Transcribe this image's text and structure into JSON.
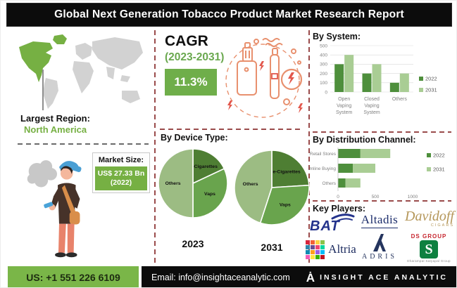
{
  "title": "Global Next Generation Tobacco Product Market Research Report",
  "left_panel": {
    "largest_region_label": "Largest Region:",
    "largest_region_value": "North America",
    "market_size_label": "Market Size:",
    "market_size_value": "US$ 27.33 Bn",
    "market_size_year": "(2022)"
  },
  "cagr_panel": {
    "label": "CAGR",
    "period": "(2023-2031)",
    "value": "11.3%"
  },
  "key_players_panel": {
    "heading": "Key Players:",
    "players": [
      {
        "name": "BAT"
      },
      {
        "name": "Altadis"
      },
      {
        "name": "Davidoff",
        "sub": "CIGARS"
      },
      {
        "name": "Altria"
      },
      {
        "name": "ADRIS"
      },
      {
        "name": "DS GROUP",
        "sub": "Dharampal Satyapal Group"
      }
    ]
  },
  "footer": {
    "phone": "US: +1 551 226 6109",
    "email": "Email: info@insightaceanalytic.com",
    "brand": "INSIGHT ACE ANALYTIC",
    "logo_glyph": "Ȧ"
  },
  "colors": {
    "accent_green": "#76b043",
    "series_2022_green": "#4e8f3c",
    "series_2031_green": "#a9cd94",
    "pie_dark_green": "#4e7e33",
    "pie_mid_green": "#69a44d",
    "pie_light_green": "#9cbc83",
    "maroon_dash": "#9a4b4b",
    "illustration_orange": "#e8906e",
    "bolt_red": "#e2574c",
    "map_gray": "#d2d2d2"
  },
  "altria_palette": [
    "#d7263d",
    "#f46036",
    "#ffd23f",
    "#8bc34a",
    "#2e86ab",
    "#6a4c93",
    "#ef476f",
    "#06d6a0",
    "#118ab2",
    "#ff9f1c",
    "#9b5de5",
    "#00bbf9",
    "#f15bb5",
    "#fee440",
    "#38b000",
    "#c1121f"
  ],
  "chart_data": [
    {
      "type": "bar",
      "title": "By System:",
      "categories": [
        "Open Vaping System",
        "Closed Vaping System",
        "Others"
      ],
      "series": [
        {
          "name": "2022",
          "values": [
            300,
            200,
            100
          ],
          "color": "#4e8f3c"
        },
        {
          "name": "2031",
          "values": [
            400,
            300,
            200
          ],
          "color": "#a9cd94"
        }
      ],
      "ylim": [
        0,
        500
      ],
      "yticks": [
        0,
        100,
        200,
        300,
        400,
        500
      ],
      "grid": true,
      "legend_position": "right"
    },
    {
      "type": "pie",
      "title": "By Device Type:",
      "year": "2023",
      "slices": [
        {
          "label": "e-Cigarettes",
          "value": 18,
          "color": "#4e7e33"
        },
        {
          "label": "Vaps",
          "value": 32,
          "color": "#69a44d"
        },
        {
          "label": "Others",
          "value": 50,
          "color": "#9cbc83"
        }
      ]
    },
    {
      "type": "pie",
      "title": "By Device Type:",
      "year": "2031",
      "slices": [
        {
          "label": "e-Cigarettes",
          "value": 24,
          "color": "#4e7e33"
        },
        {
          "label": "Vaps",
          "value": 31,
          "color": "#69a44d"
        },
        {
          "label": "Others",
          "value": 45,
          "color": "#9cbc83"
        }
      ]
    },
    {
      "type": "bar",
      "orientation": "horizontal",
      "stacked": true,
      "title": "By Distribution Channel:",
      "categories": [
        "Retail Stores",
        "Online Buying",
        "Others"
      ],
      "series": [
        {
          "name": "2022",
          "values": [
            300,
            200,
            100
          ],
          "color": "#4e8f3c"
        },
        {
          "name": "2031",
          "values": [
            400,
            300,
            200
          ],
          "color": "#a9cd94"
        }
      ],
      "xlim": [
        0,
        1000
      ],
      "xticks": [
        0,
        500,
        1000
      ],
      "legend_position": "right"
    }
  ]
}
